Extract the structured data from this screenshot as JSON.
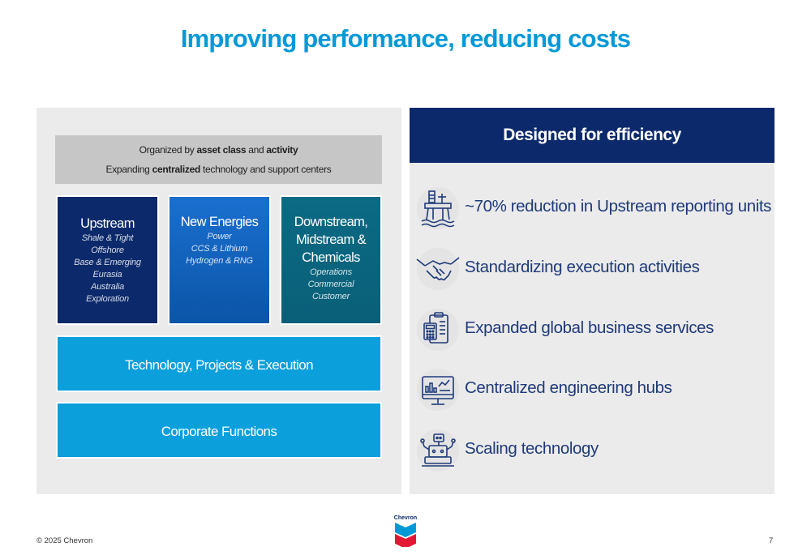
{
  "title": "Improving performance, reducing costs",
  "org": {
    "line1": {
      "pre": "Organized by ",
      "b1": "asset class",
      "mid": " and ",
      "b2": "activity"
    },
    "line2": {
      "pre": "Expanding ",
      "b1": "centralized",
      "post": " technology and support centers"
    }
  },
  "cards": {
    "upstream": {
      "head": "Upstream",
      "items": [
        "Shale & Tight",
        "Offshore",
        "Base & Emerging",
        "Eurasia",
        "Australia",
        "Exploration"
      ]
    },
    "new_energies": {
      "head": "New Energies",
      "items": [
        "Power",
        "CCS & Lithium",
        "Hydrogen & RNG"
      ]
    },
    "downstream": {
      "head_lines": [
        "Downstream,",
        "Midstream &",
        "Chemicals"
      ],
      "items": [
        "Operations",
        "Commercial",
        "Customer"
      ]
    }
  },
  "bars": {
    "tpe": "Technology, Projects & Execution",
    "cf": "Corporate Functions"
  },
  "right": {
    "heading": "Designed for efficiency",
    "rows": [
      {
        "icon": "offshore-platform-icon",
        "text": "~70% reduction in Upstream reporting units"
      },
      {
        "icon": "handshake-icon",
        "text": "Standardizing execution activities"
      },
      {
        "icon": "clipboard-calculator-icon",
        "text": "Expanded global business services"
      },
      {
        "icon": "computer-dashboard-icon",
        "text": "Centralized engineering hubs"
      },
      {
        "icon": "robot-technology-icon",
        "text": "Scaling technology"
      }
    ]
  },
  "footer": {
    "copyright": "© 2025 Chevron",
    "page": "7",
    "logo_text": "Chevron"
  },
  "colors": {
    "title": "#0099d8",
    "navy": "#0c2a6b",
    "blue": "#0b9fdc",
    "teal": "#0a6a84",
    "panel": "#ebebeb",
    "red": "#e21836"
  }
}
